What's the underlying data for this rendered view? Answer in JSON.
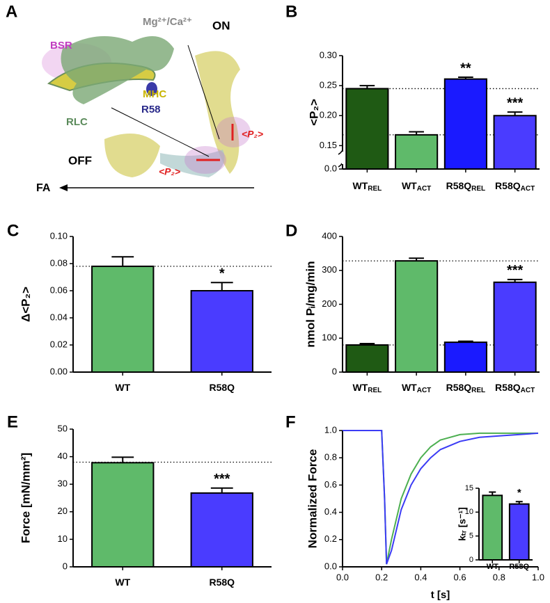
{
  "panel_a": {
    "panel": "A",
    "bsr": "BSR",
    "ions": "Mg²⁺/Ca²⁺",
    "on": "ON",
    "mhc": "MHC",
    "r58": "R58",
    "rlc": "RLC",
    "off": "OFF",
    "p2_on": "<P₂>",
    "p2_off": "<P₂>",
    "fa": "FA"
  },
  "chart_data": [
    {
      "panel": "B",
      "type": "bar",
      "ylabel": "<P₂>",
      "categories": [
        "WT",
        "WT",
        "R58Q",
        "R58Q"
      ],
      "category_subscripts": [
        "REL",
        "ACT",
        "REL",
        "ACT"
      ],
      "values": [
        0.245,
        0.168,
        0.261,
        0.2
      ],
      "errors": [
        0.005,
        0.005,
        0.003,
        0.006
      ],
      "colors": [
        "#1f5a14",
        "#5fba6a",
        "#1a1aff",
        "#4a3cff"
      ],
      "annotations": [
        null,
        null,
        "**",
        "***"
      ],
      "reference_lines": [
        0.245,
        0.168
      ],
      "ylim": [
        0,
        0.3
      ],
      "axis_break": [
        0.01,
        0.14
      ],
      "yticks": [
        {
          "value": 0,
          "label": "0.0"
        },
        0.15,
        {
          "value": 0.2,
          "label": "0.20"
        },
        0.25,
        {
          "value": 0.3,
          "label": "0.30"
        }
      ]
    },
    {
      "panel": "C",
      "type": "bar",
      "ylabel": "Δ<P₂>",
      "categories": [
        "WT",
        "R58Q"
      ],
      "values": [
        0.078,
        0.06
      ],
      "errors": [
        0.007,
        0.006
      ],
      "colors": [
        "#5fba6a",
        "#4a3cff"
      ],
      "annotations": [
        null,
        "*"
      ],
      "reference_lines": [
        0.078
      ],
      "ylim": [
        0,
        0.1
      ],
      "yticks": [
        {
          "value": 0,
          "label": "0.00"
        },
        {
          "value": 0.02,
          "label": "0.02"
        },
        {
          "value": 0.04,
          "label": "0.04"
        },
        {
          "value": 0.06,
          "label": "0.06"
        },
        {
          "value": 0.08,
          "label": "0.08"
        },
        {
          "value": 0.1,
          "label": "0.10"
        }
      ]
    },
    {
      "panel": "D",
      "type": "bar",
      "ylabel": "nmol Pᵢ/mg/min",
      "categories": [
        "WT",
        "WT",
        "R58Q",
        "R58Q"
      ],
      "category_subscripts": [
        "REL",
        "ACT",
        "REL",
        "ACT"
      ],
      "values": [
        80,
        328,
        88,
        265
      ],
      "errors": [
        4,
        8,
        3,
        8
      ],
      "colors": [
        "#1f5a14",
        "#5fba6a",
        "#1a1aff",
        "#4a3cff"
      ],
      "annotations": [
        null,
        null,
        null,
        "***"
      ],
      "reference_lines": [
        328,
        80
      ],
      "ylim": [
        0,
        400
      ],
      "yticks": [
        0,
        100,
        200,
        300,
        400
      ]
    },
    {
      "panel": "E",
      "type": "bar",
      "ylabel": "Force [mN/mm²]",
      "categories": [
        "WT",
        "R58Q"
      ],
      "values": [
        37.8,
        26.8
      ],
      "errors": [
        2.0,
        1.8
      ],
      "colors": [
        "#5fba6a",
        "#4a3cff"
      ],
      "annotations": [
        null,
        "***"
      ],
      "reference_lines": [
        38
      ],
      "ylim": [
        0,
        50
      ],
      "yticks": [
        0,
        10,
        20,
        30,
        40,
        50
      ]
    },
    {
      "panel": "F",
      "type": "line",
      "xlabel": "t [s]",
      "ylabel": "Normalized Force",
      "x": [
        0,
        0.2,
        0.215,
        0.225,
        0.25,
        0.3,
        0.35,
        0.4,
        0.45,
        0.5,
        0.6,
        0.7,
        0.8,
        0.9,
        1.0
      ],
      "series": [
        {
          "color": "#4caf50",
          "values": [
            1,
            1,
            0.5,
            0.02,
            0.2,
            0.5,
            0.68,
            0.8,
            0.88,
            0.93,
            0.97,
            0.98,
            0.98,
            0.98,
            0.98
          ]
        },
        {
          "color": "#3b3bf5",
          "values": [
            1,
            1,
            0.5,
            0.02,
            0.12,
            0.42,
            0.6,
            0.72,
            0.8,
            0.86,
            0.92,
            0.95,
            0.96,
            0.97,
            0.98
          ]
        }
      ],
      "xlim": [
        0,
        1.0
      ],
      "ylim": [
        0,
        1.0
      ],
      "xticks": [
        {
          "value": 0,
          "label": "0.0"
        },
        0.2,
        0.4,
        0.6,
        0.8,
        {
          "value": 1,
          "label": "1.0"
        }
      ],
      "yticks": [
        {
          "value": 0,
          "label": "0.0"
        },
        0.2,
        0.4,
        0.6,
        0.8,
        {
          "value": 1,
          "label": "1.0"
        }
      ],
      "inset": {
        "type": "bar",
        "ylabel": "kₜᵣ [s⁻¹]",
        "categories": [
          "WT",
          "R58Q"
        ],
        "values": [
          13.5,
          11.7
        ],
        "errors": [
          0.7,
          0.5
        ],
        "colors": [
          "#5fba6a",
          "#4a3cff"
        ],
        "annotations": [
          null,
          "*"
        ],
        "ylim": [
          0,
          15
        ],
        "yticks": [
          0,
          5,
          10,
          15
        ]
      }
    }
  ]
}
